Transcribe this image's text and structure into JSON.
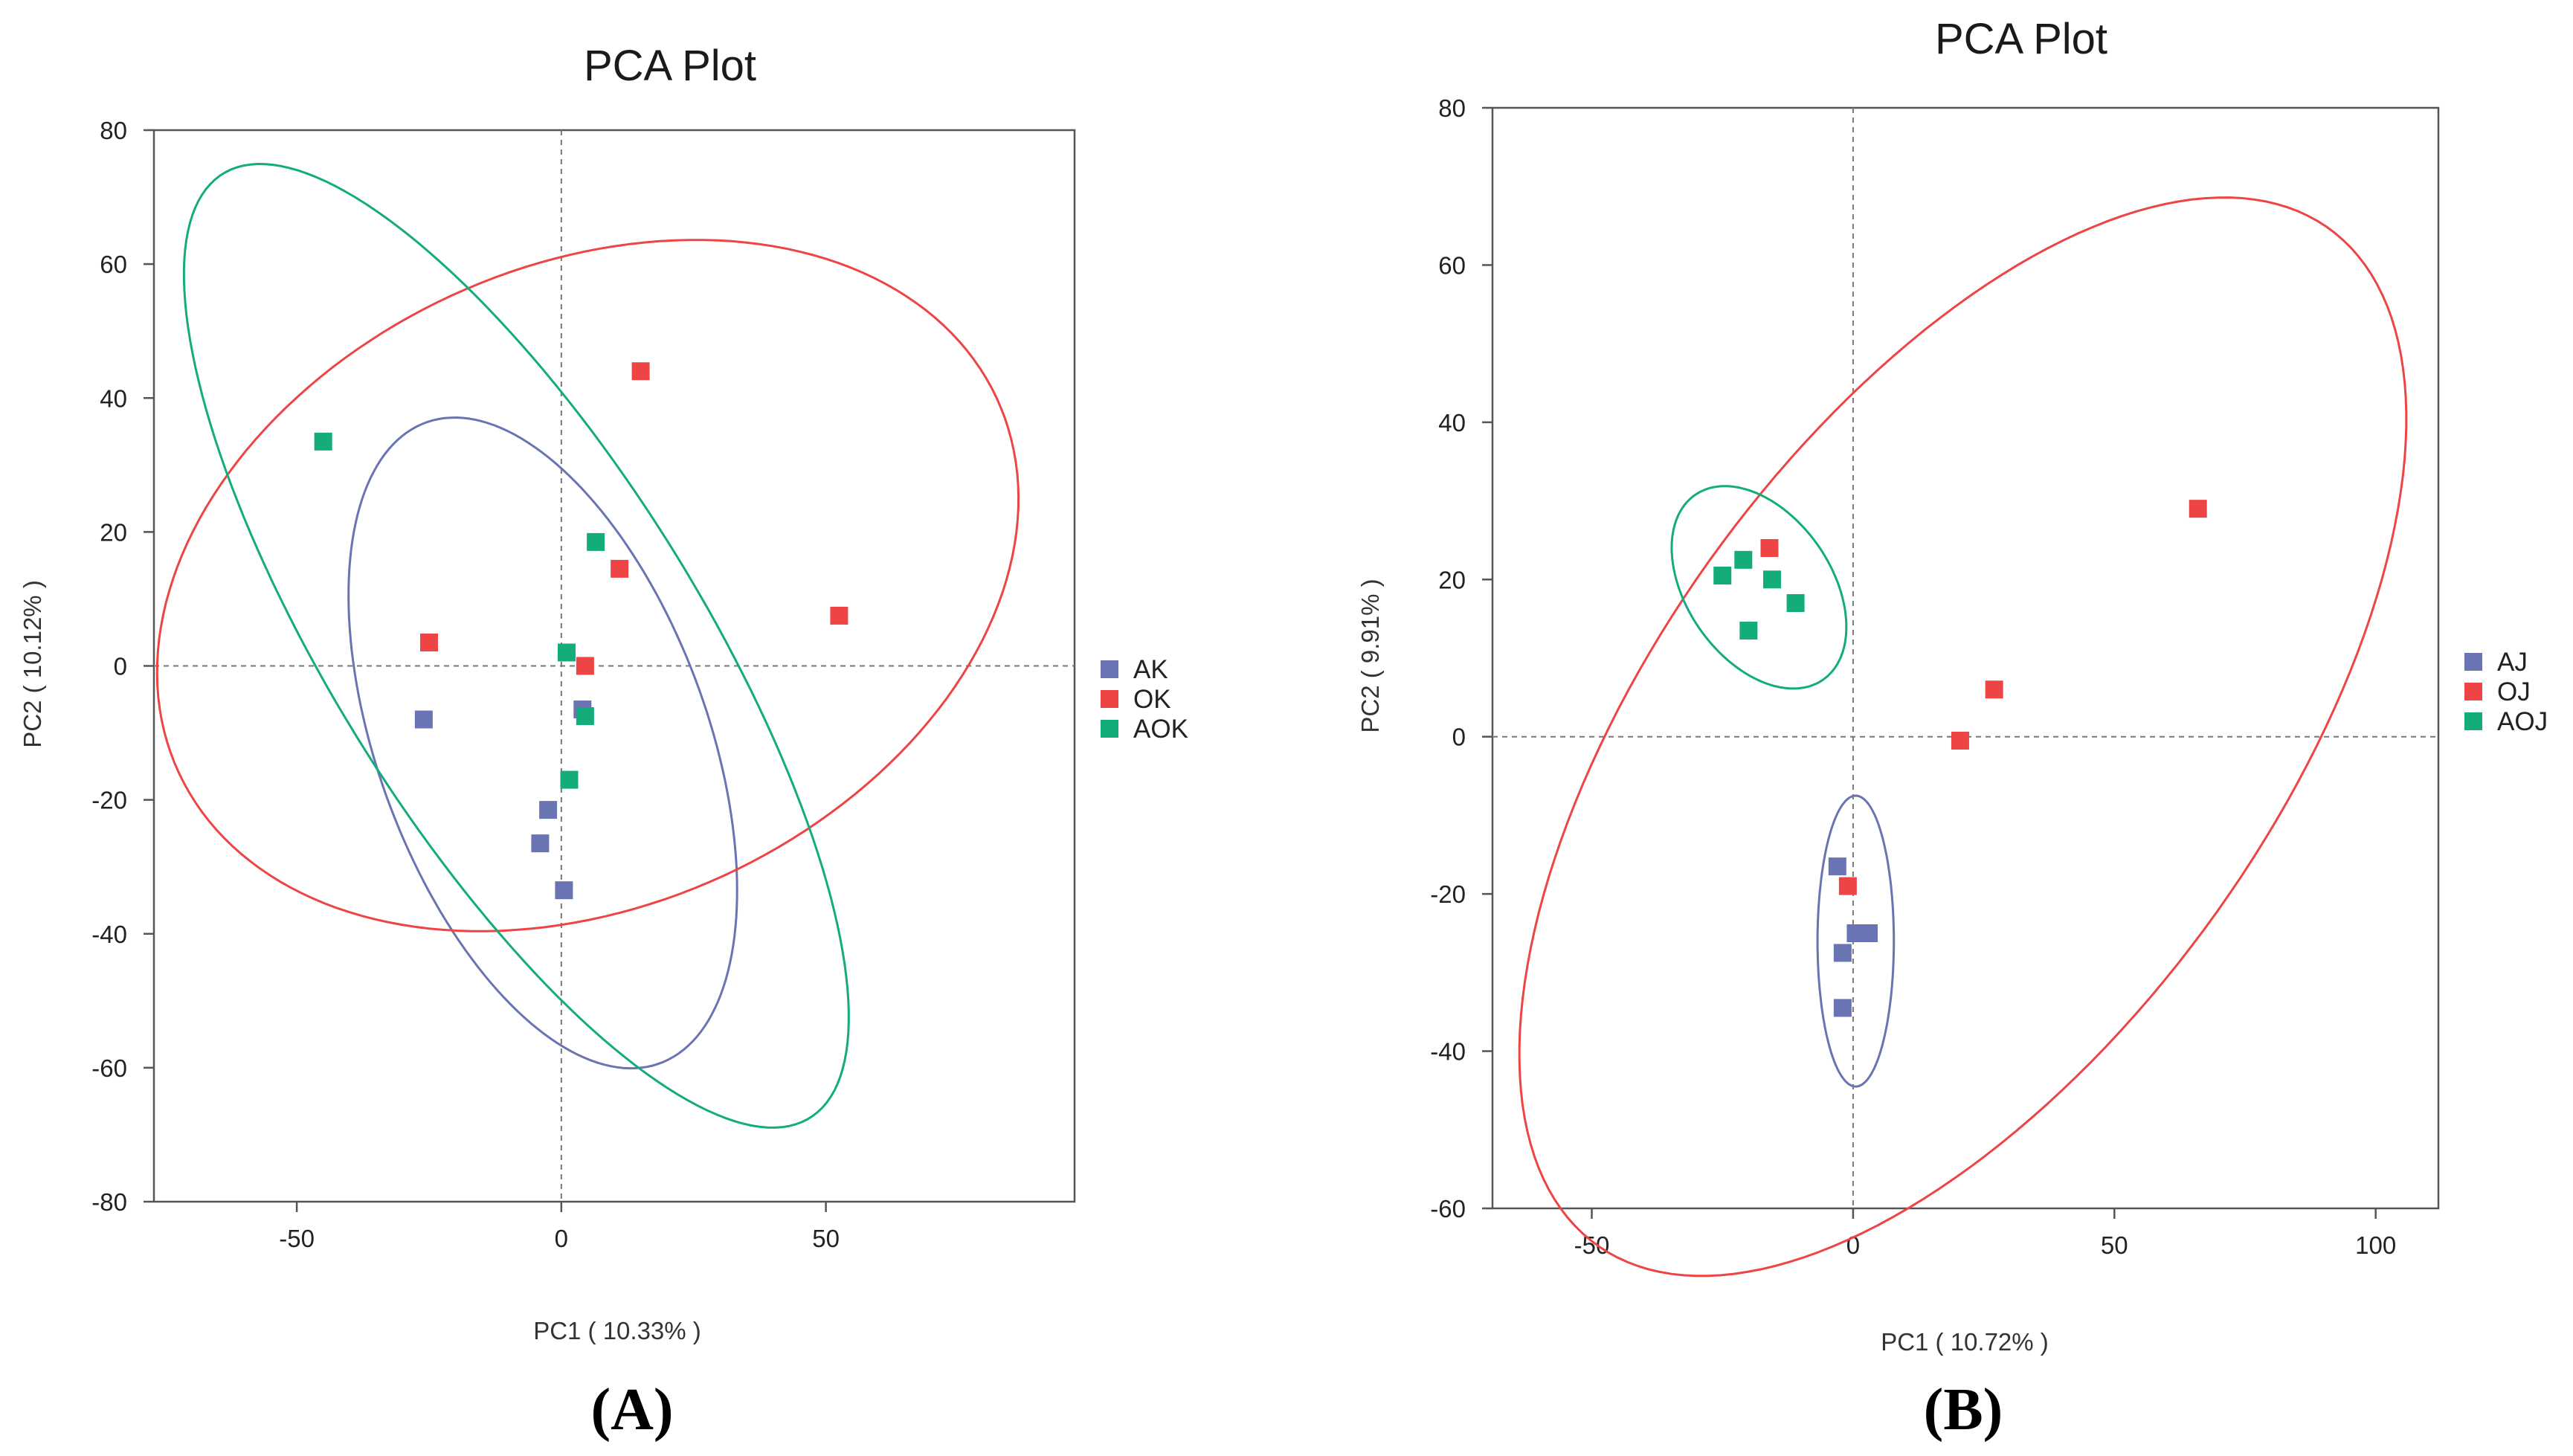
{
  "chart_data": [
    {
      "type": "scatter",
      "panel_label": "(A)",
      "title": "PCA Plot",
      "xlabel": "PC1 ( 10.33% )",
      "ylabel": "PC2 ( 10.12% )",
      "xlim": [
        -77,
        97
      ],
      "ylim": [
        -80,
        80
      ],
      "xticks": [
        -50,
        0,
        50
      ],
      "yticks": [
        80,
        60,
        40,
        20,
        0,
        -20,
        -40,
        -60,
        -80
      ],
      "grid": false,
      "reference_lines": "dashed lines at x=0 and y=0",
      "legend": "right",
      "series": [
        {
          "name": "AK",
          "color": "#6b74b2",
          "points": [
            [
              -26,
              -8
            ],
            [
              4,
              -6.5
            ],
            [
              -2.5,
              -21.5
            ],
            [
              -4,
              -26.5
            ],
            [
              0.5,
              -33.5
            ]
          ],
          "ellipse": {
            "cx": -3.5,
            "cy": -11.5,
            "rx": 53,
            "ry": 30,
            "angle": -61
          }
        },
        {
          "name": "OK",
          "color": "#ed4545",
          "points": [
            [
              15,
              44
            ],
            [
              11,
              14.5
            ],
            [
              52.5,
              7.5
            ],
            [
              -25,
              3.5
            ],
            [
              4.5,
              0
            ]
          ],
          "ellipse": {
            "cx": 5,
            "cy": 12,
            "rx": 83,
            "ry": 49,
            "angle": 14
          }
        },
        {
          "name": "AOK",
          "color": "#14ac7a",
          "points": [
            [
              -45,
              33.5
            ],
            [
              6.5,
              18.5
            ],
            [
              1,
              2
            ],
            [
              4.5,
              -7.5
            ],
            [
              1.5,
              -17
            ]
          ],
          "ellipse": {
            "cx": -8.5,
            "cy": 3,
            "rx": 90,
            "ry": 32,
            "angle": -50
          }
        }
      ]
    },
    {
      "type": "scatter",
      "panel_label": "(B)",
      "title": "PCA Plot",
      "xlabel": "PC1 ( 10.72% )",
      "ylabel": "PC2 ( 9.91% )",
      "xlim": [
        -69,
        112
      ],
      "ylim": [
        -60,
        80
      ],
      "xticks": [
        -50,
        0,
        50,
        100
      ],
      "yticks": [
        80,
        60,
        40,
        20,
        0,
        -20,
        -40,
        -60
      ],
      "grid": false,
      "reference_lines": "dashed lines at x=0 and y=0",
      "legend": "right",
      "series": [
        {
          "name": "AJ",
          "color": "#6b74b2",
          "points": [
            [
              -3,
              -16.5
            ],
            [
              0.5,
              -25
            ],
            [
              3,
              -25
            ],
            [
              -2,
              -27.5
            ],
            [
              -2,
              -34.5
            ]
          ],
          "ellipse": {
            "cx": 0.5,
            "cy": -26,
            "rx": 7.3,
            "ry": 18.5,
            "angle": 0
          }
        },
        {
          "name": "OJ",
          "color": "#ed4545",
          "points": [
            [
              66,
              29
            ],
            [
              -16,
              24
            ],
            [
              27,
              6
            ],
            [
              20.5,
              -0.5
            ],
            [
              -1,
              -19
            ]
          ],
          "ellipse": {
            "cx": 21,
            "cy": 0,
            "rx": 98,
            "ry": 48,
            "angle": 35
          }
        },
        {
          "name": "AOJ",
          "color": "#14ac7a",
          "points": [
            [
              -21,
              22.5
            ],
            [
              -25,
              20.5
            ],
            [
              -15.5,
              20
            ],
            [
              -11,
              17
            ],
            [
              -20,
              13.5
            ]
          ],
          "ellipse": {
            "cx": -18,
            "cy": 19,
            "rx": 18,
            "ry": 11,
            "angle": -28
          }
        }
      ]
    }
  ]
}
